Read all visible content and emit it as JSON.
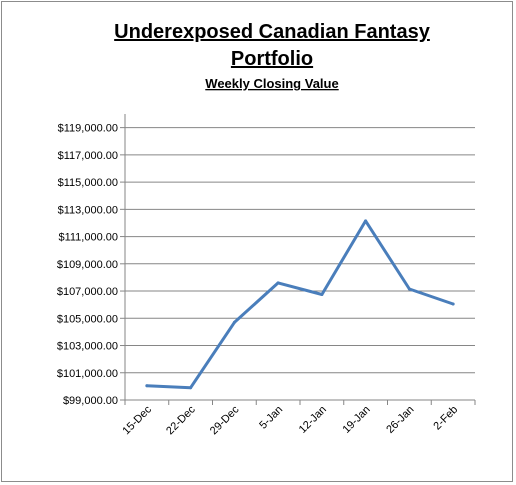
{
  "chart_data": {
    "type": "line",
    "title_line1": "Underexposed Canadian Fantasy",
    "title_line2": "Portfolio",
    "subtitle": "Weekly Closing Value",
    "categories": [
      "15-Dec",
      "22-Dec",
      "29-Dec",
      "5-Jan",
      "12-Jan",
      "19-Jan",
      "26-Jan",
      "2-Feb"
    ],
    "series": [
      {
        "values": [
          100050,
          99900,
          104700,
          107600,
          106750,
          112150,
          107150,
          106050
        ]
      }
    ],
    "ylim": [
      99000,
      120000
    ],
    "yticks": [
      "$99,000.00",
      "$101,000.00",
      "$103,000.00",
      "$105,000.00",
      "$107,000.00",
      "$109,000.00",
      "$111,000.00",
      "$113,000.00",
      "$115,000.00",
      "$117,000.00",
      "$119,000.00"
    ],
    "ytick_values": [
      99000,
      101000,
      103000,
      105000,
      107000,
      109000,
      111000,
      113000,
      115000,
      117000,
      119000
    ],
    "grid": true,
    "legend": "none",
    "colors": {
      "line": "#4a7ebb",
      "grid": "#868686",
      "axis": "#868686"
    }
  }
}
